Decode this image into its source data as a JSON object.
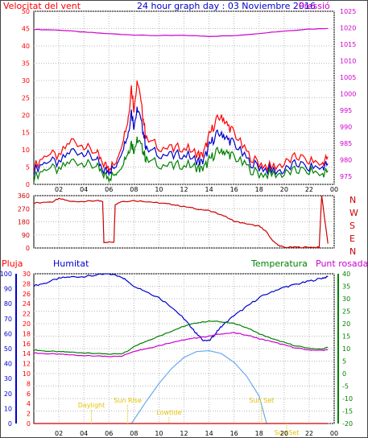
{
  "chart_data": [
    {
      "type": "line",
      "title": "24 hour graph day : 03 Noviembre 2016",
      "left_label": "Velocitat del vent",
      "right_label": "Pressió",
      "x_ticks": [
        "02",
        "04",
        "06",
        "08",
        "10",
        "12",
        "14",
        "16",
        "18",
        "20",
        "22",
        "00"
      ],
      "y_left_ticks": [
        0,
        5,
        10,
        15,
        20,
        25,
        30,
        35,
        40,
        45,
        50
      ],
      "y_right_ticks": [
        975,
        980,
        985,
        990,
        995,
        1000,
        1005,
        1010,
        1015,
        1020,
        1025
      ],
      "ylim_left": [
        0,
        50
      ],
      "ylim_right": [
        972.5,
        1025
      ],
      "grid": true,
      "colors": {
        "gust": "#ff0000",
        "speed": "#0000cc",
        "avg": "#008000",
        "pressure": "#cc00cc"
      },
      "series": [
        {
          "color": "#ff0000",
          "x": [
            0,
            1,
            2,
            3,
            4,
            5,
            5.5,
            6,
            6.5,
            7,
            7.5,
            7.8,
            8,
            8.3,
            8.7,
            9,
            10,
            11,
            12,
            13,
            13.5,
            14,
            14.5,
            15,
            15.5,
            16,
            17,
            18,
            19,
            20,
            21,
            22,
            23,
            23.5
          ],
          "values": [
            5,
            9,
            8,
            13,
            11,
            9,
            6,
            5,
            6,
            12,
            18,
            28,
            22,
            30,
            20,
            13,
            11,
            10,
            11,
            9,
            8,
            14,
            18,
            20,
            17,
            15,
            9,
            6,
            5,
            6,
            8,
            7,
            6,
            8
          ]
        },
        {
          "color": "#0000cc",
          "x": [
            0,
            1,
            2,
            3,
            4,
            5,
            5.5,
            6,
            6.5,
            7,
            7.5,
            7.8,
            8,
            8.3,
            8.7,
            9,
            10,
            11,
            12,
            13,
            13.5,
            14,
            14.5,
            15,
            15.5,
            16,
            17,
            18,
            19,
            20,
            21,
            22,
            23,
            23.5
          ],
          "values": [
            4,
            7,
            6,
            10,
            9,
            7,
            4,
            4,
            5,
            10,
            14,
            21,
            17,
            22,
            16,
            10,
            9,
            8,
            9,
            7,
            6,
            11,
            14,
            15,
            13,
            12,
            7,
            5,
            4,
            4,
            6,
            5,
            5,
            6
          ]
        },
        {
          "color": "#008000",
          "x": [
            0,
            1,
            2,
            3,
            4,
            5,
            5.5,
            6,
            6.5,
            7,
            7.5,
            7.8,
            8,
            8.3,
            8.7,
            9,
            10,
            11,
            12,
            13,
            13.5,
            14,
            14.5,
            15,
            15.5,
            16,
            17,
            18,
            19,
            20,
            21,
            22,
            23,
            23.5
          ],
          "values": [
            2,
            5,
            4,
            7,
            6,
            5,
            3,
            2,
            3,
            6,
            9,
            12,
            10,
            13,
            10,
            7,
            6,
            5,
            6,
            5,
            4,
            7,
            9,
            10,
            9,
            8,
            5,
            3,
            3,
            3,
            4,
            4,
            3,
            4
          ]
        },
        {
          "color": "#cc00cc",
          "axis": "right",
          "x": [
            0,
            2,
            4,
            6,
            8,
            10,
            12,
            14,
            16,
            18,
            20,
            22,
            23.5
          ],
          "values": [
            1019.5,
            1019.3,
            1018.7,
            1018.2,
            1017.8,
            1017.6,
            1017.7,
            1017.4,
            1017.6,
            1018.3,
            1019.0,
            1019.6,
            1019.8
          ]
        }
      ]
    },
    {
      "type": "line",
      "y_left_ticks": [
        0,
        90,
        180,
        270,
        360
      ],
      "right_labels": [
        "N",
        "W",
        "S",
        "E",
        "N"
      ],
      "ylim": [
        0,
        360
      ],
      "series": [
        {
          "color": "#cc0000",
          "x": [
            0,
            1.5,
            2,
            3,
            4,
            5,
            5.5,
            5.6,
            6.4,
            6.5,
            7,
            8,
            9,
            10,
            11,
            12,
            13,
            14,
            15,
            16,
            17,
            18,
            18.5,
            19,
            19.5,
            20,
            21,
            22,
            22.8,
            23,
            23.5
          ],
          "values": [
            310,
            318,
            340,
            320,
            320,
            325,
            320,
            40,
            40,
            300,
            320,
            325,
            320,
            310,
            300,
            285,
            270,
            255,
            230,
            185,
            165,
            150,
            120,
            60,
            20,
            5,
            5,
            5,
            5,
            360,
            30
          ]
        }
      ]
    },
    {
      "type": "line",
      "labels": {
        "rain": "Pluja",
        "humidity": "Humitat",
        "temperature": "Temperatura",
        "dew": "Punt rosada"
      },
      "y_rain_ticks": [
        0,
        2,
        4,
        6,
        8,
        10,
        12,
        14,
        16,
        18,
        20,
        22,
        24,
        26,
        28,
        30
      ],
      "y_hum_ticks": [
        0,
        10,
        20,
        30,
        40,
        50,
        60,
        70,
        80,
        90,
        100
      ],
      "y_temp_ticks": [
        -20,
        -15,
        -10,
        -5,
        0,
        5,
        10,
        15,
        20,
        25,
        30,
        35,
        40
      ],
      "ylim_temp": [
        -20,
        40
      ],
      "ylim_hum": [
        0,
        100
      ],
      "ylim_rain": [
        0,
        30
      ],
      "annotations": [
        {
          "text": "Daylight",
          "x": 4.6
        },
        {
          "text": "Sun Rise",
          "x": 7.5
        },
        {
          "text": "Lowtide",
          "x": 10.8
        },
        {
          "text": "Sun Set",
          "x": 18.2
        },
        {
          "text": "Sun Set",
          "x": 20.2
        }
      ],
      "series": [
        {
          "color": "#0000cc",
          "axis": "humidity",
          "x": [
            0,
            1,
            2,
            3,
            4,
            5,
            6,
            7,
            7.5,
            8,
            9,
            10,
            11,
            12,
            12.5,
            13,
            13.5,
            14,
            14.5,
            15,
            16,
            17,
            18,
            19,
            20,
            21,
            22,
            23,
            23.5
          ],
          "values": [
            92,
            94,
            97,
            98,
            98,
            99,
            100,
            98,
            95,
            92,
            88,
            84,
            78,
            70,
            65,
            60,
            56,
            55,
            60,
            65,
            72,
            78,
            84,
            88,
            91,
            93,
            95,
            97,
            98
          ]
        },
        {
          "color": "#008000",
          "axis": "temperature",
          "x": [
            0,
            1,
            2,
            3,
            4,
            5,
            6,
            7,
            7.5,
            8,
            9,
            10,
            11,
            12,
            13,
            14,
            15,
            16,
            17,
            18,
            19,
            20,
            21,
            22,
            23,
            23.5
          ],
          "values": [
            9.5,
            9,
            8.8,
            8.6,
            8.3,
            8,
            7.8,
            8,
            9,
            11,
            13,
            15,
            17,
            19,
            20.3,
            21,
            20.8,
            20,
            18.5,
            16,
            14,
            12.5,
            11,
            10.2,
            9.8,
            10.5
          ]
        },
        {
          "color": "#cc00cc",
          "axis": "temperature",
          "x": [
            0,
            1,
            2,
            3,
            4,
            5,
            6,
            7,
            7.5,
            8,
            9,
            10,
            11,
            12,
            13,
            14,
            15,
            16,
            17,
            18,
            19,
            20,
            21,
            22,
            23,
            23.5
          ],
          "values": [
            8.3,
            8,
            7.8,
            7.5,
            7.2,
            7,
            6.8,
            7,
            8,
            9,
            10,
            11.2,
            12.5,
            13.5,
            14.3,
            15,
            16,
            16.3,
            15.5,
            14,
            12.8,
            11.5,
            10.2,
            9.5,
            9.3,
            9.5
          ]
        },
        {
          "color": "#6aaaf0",
          "axis": "temperature",
          "x": [
            7.8,
            9,
            10,
            11,
            12,
            13,
            14,
            15,
            16,
            17,
            18,
            18.6
          ],
          "values": [
            -20,
            -11,
            -4,
            2,
            6.5,
            8.8,
            9.2,
            8,
            4.5,
            -1,
            -9,
            -20
          ]
        },
        {
          "color": "#cc0000",
          "axis": "rain",
          "x": [
            0,
            23.5
          ],
          "values": [
            0,
            0
          ]
        }
      ]
    }
  ]
}
